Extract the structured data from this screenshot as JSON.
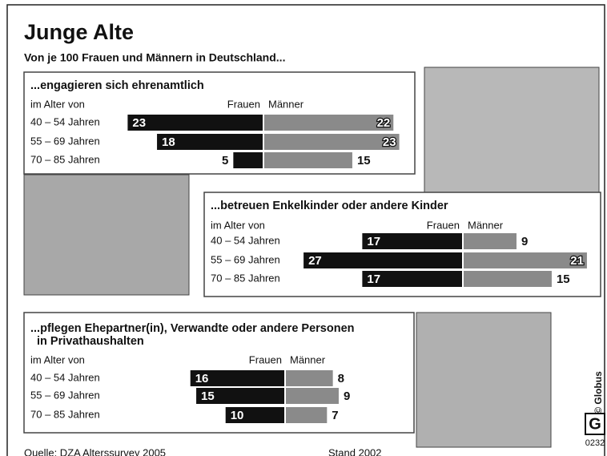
{
  "title": "Junge Alte",
  "subtitle": "Von je 100 Frauen und Männern in Deutschland...",
  "chart_data": [
    {
      "type": "butterfly",
      "title": "...engagieren sich ehrenamtlich",
      "axis_label": "im Alter von",
      "categories": [
        "40 – 54 Jahren",
        "55 – 69 Jahren",
        "70 – 85 Jahren"
      ],
      "series": [
        {
          "name": "Frauen",
          "color": "#111111",
          "values": [
            23,
            18,
            5
          ]
        },
        {
          "name": "Männer",
          "color": "#8a8a8a",
          "values": [
            22,
            23,
            15
          ]
        }
      ]
    },
    {
      "type": "butterfly",
      "title": "...betreuen Enkelkinder oder andere Kinder",
      "axis_label": "im Alter von",
      "categories": [
        "40 – 54 Jahren",
        "55 – 69 Jahren",
        "70 – 85 Jahren"
      ],
      "series": [
        {
          "name": "Frauen",
          "color": "#111111",
          "values": [
            17,
            27,
            17
          ]
        },
        {
          "name": "Männer",
          "color": "#8a8a8a",
          "values": [
            9,
            21,
            15
          ]
        }
      ]
    },
    {
      "type": "butterfly",
      "title": [
        "...pflegen Ehepartner(in), Verwandte oder andere Personen",
        "in Privathaushalten"
      ],
      "axis_label": "im Alter von",
      "categories": [
        "40 – 54 Jahren",
        "55 – 69 Jahren",
        "70 – 85 Jahren"
      ],
      "series": [
        {
          "name": "Frauen",
          "color": "#111111",
          "values": [
            16,
            15,
            10
          ]
        },
        {
          "name": "Männer",
          "color": "#8a8a8a",
          "values": [
            8,
            9,
            7
          ]
        }
      ]
    }
  ],
  "source": "Quelle: DZA Alterssurvey 2005",
  "stand": "Stand 2002",
  "credit": "© Globus",
  "logo": "G",
  "code": "0232"
}
